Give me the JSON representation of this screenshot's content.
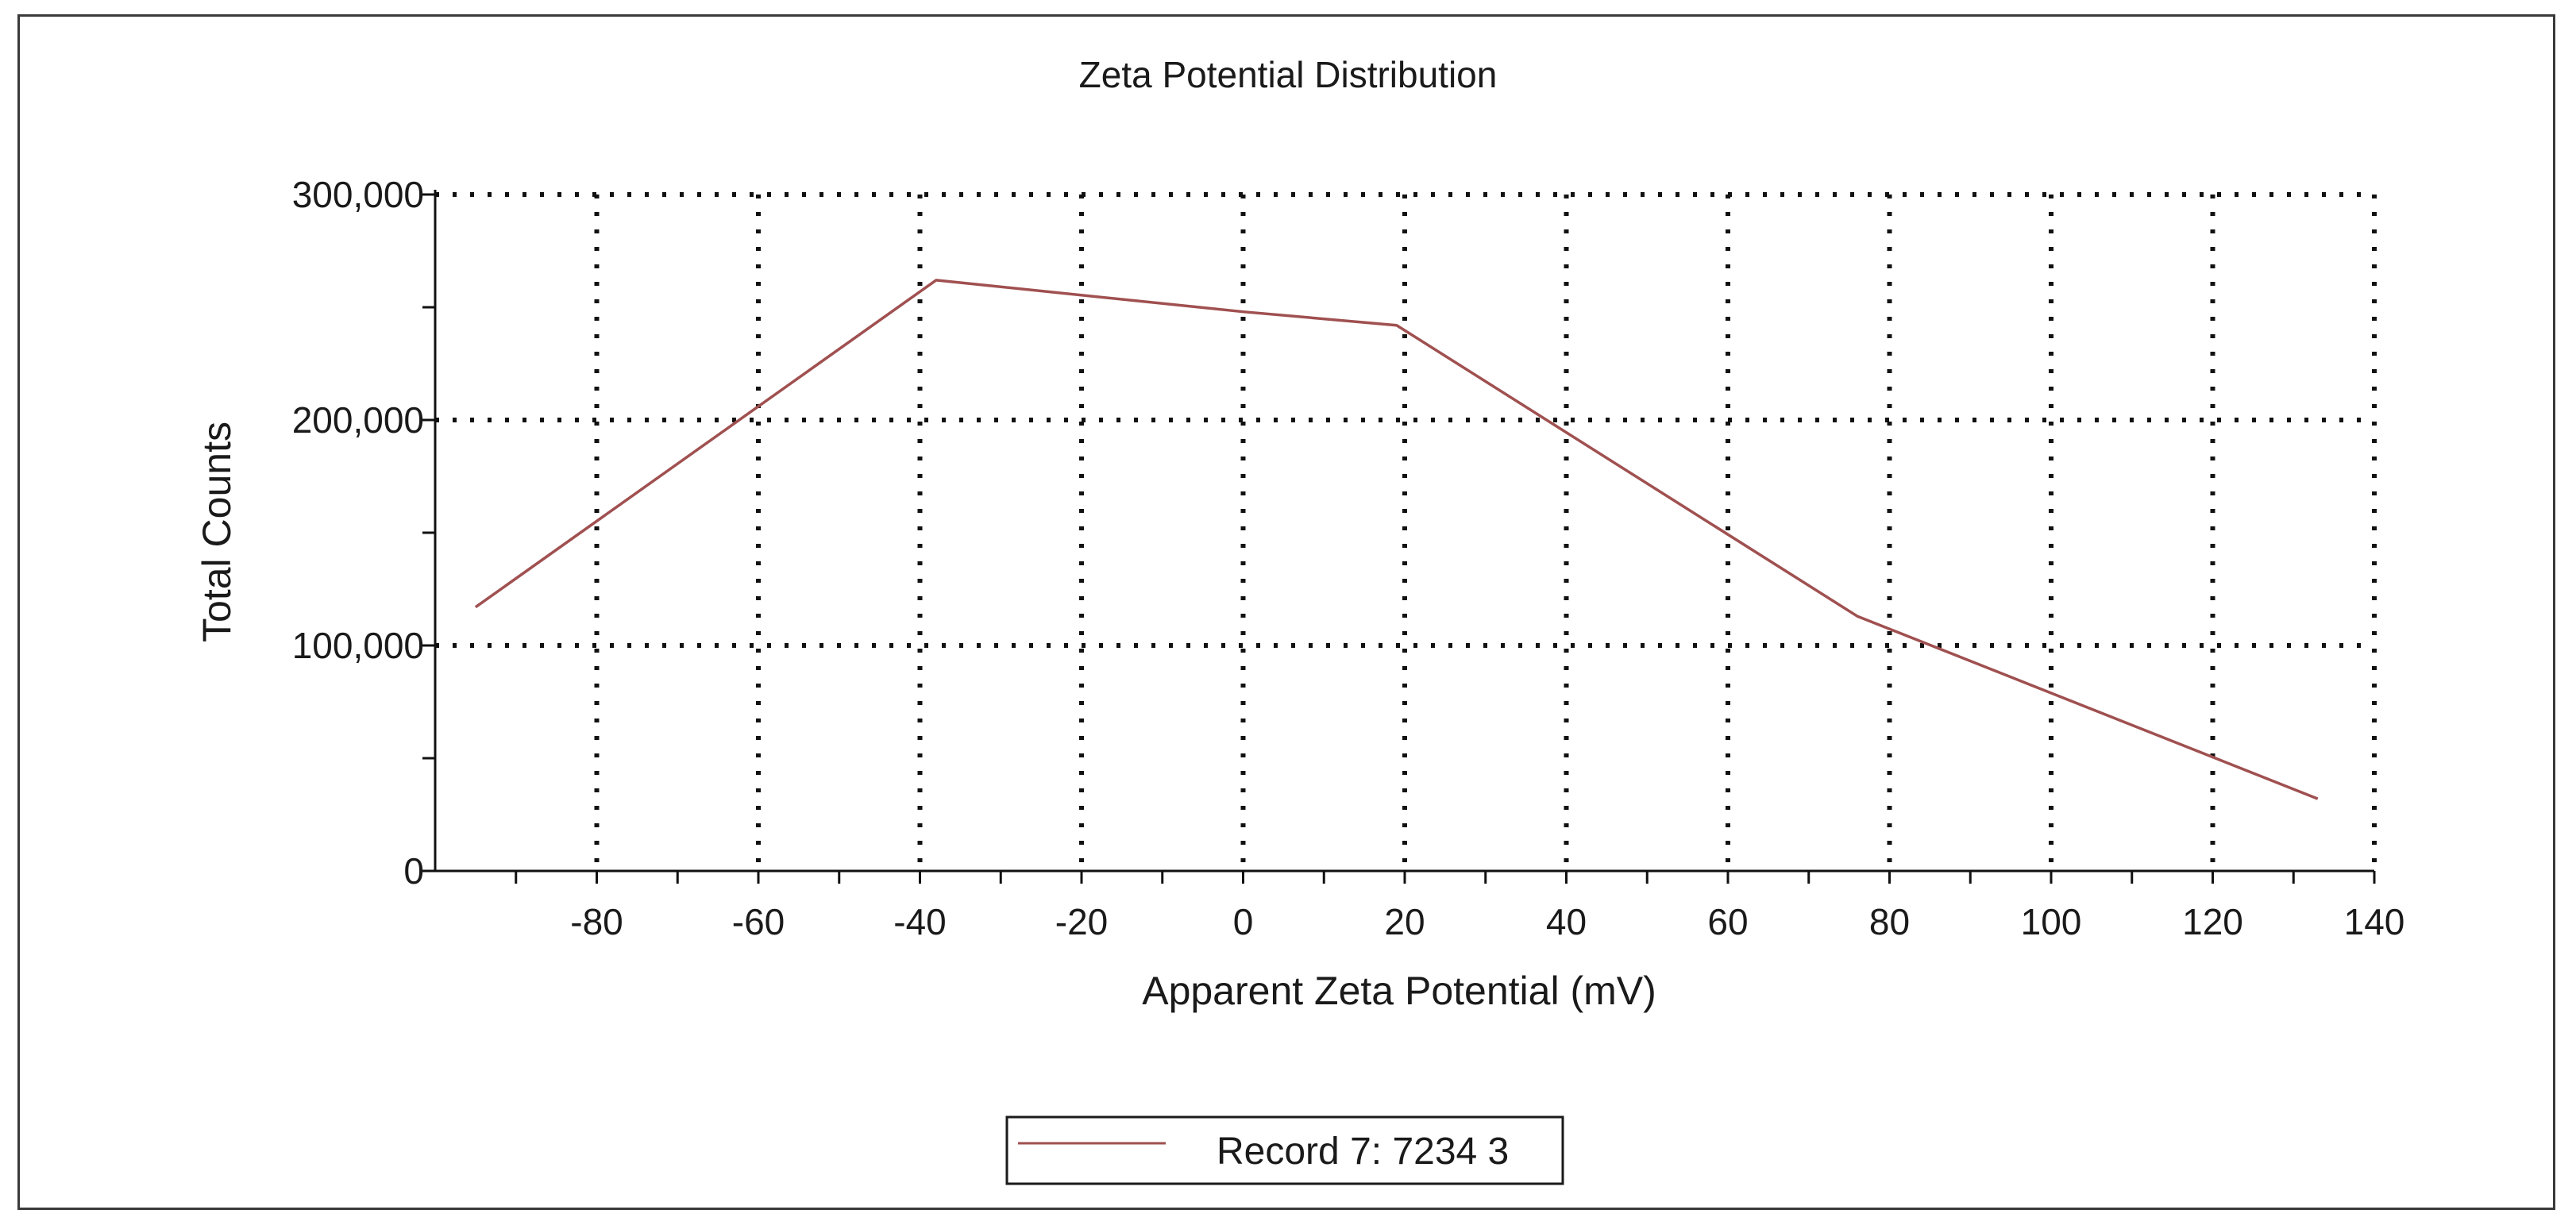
{
  "chart_data": {
    "type": "line",
    "title": "Zeta Potential Distribution",
    "xlabel": "Apparent Zeta Potential (mV)",
    "ylabel": "Total Counts",
    "xlim": [
      -100,
      140
    ],
    "ylim": [
      0,
      300000
    ],
    "x_ticks": [
      -80,
      -60,
      -40,
      -20,
      0,
      20,
      40,
      60,
      80,
      100,
      120,
      140
    ],
    "y_ticks": [
      0,
      100000,
      200000,
      300000
    ],
    "y_tick_labels": [
      "0",
      "100,000",
      "200,000",
      "300,000"
    ],
    "grid": true,
    "legend_position": "bottom-center",
    "series": [
      {
        "name": "Record 7: 7234 3",
        "color": "#a05050",
        "x": [
          -95,
          -38,
          0,
          19,
          76,
          133
        ],
        "y": [
          117000,
          262000,
          248000,
          242000,
          113000,
          32000
        ]
      }
    ]
  }
}
